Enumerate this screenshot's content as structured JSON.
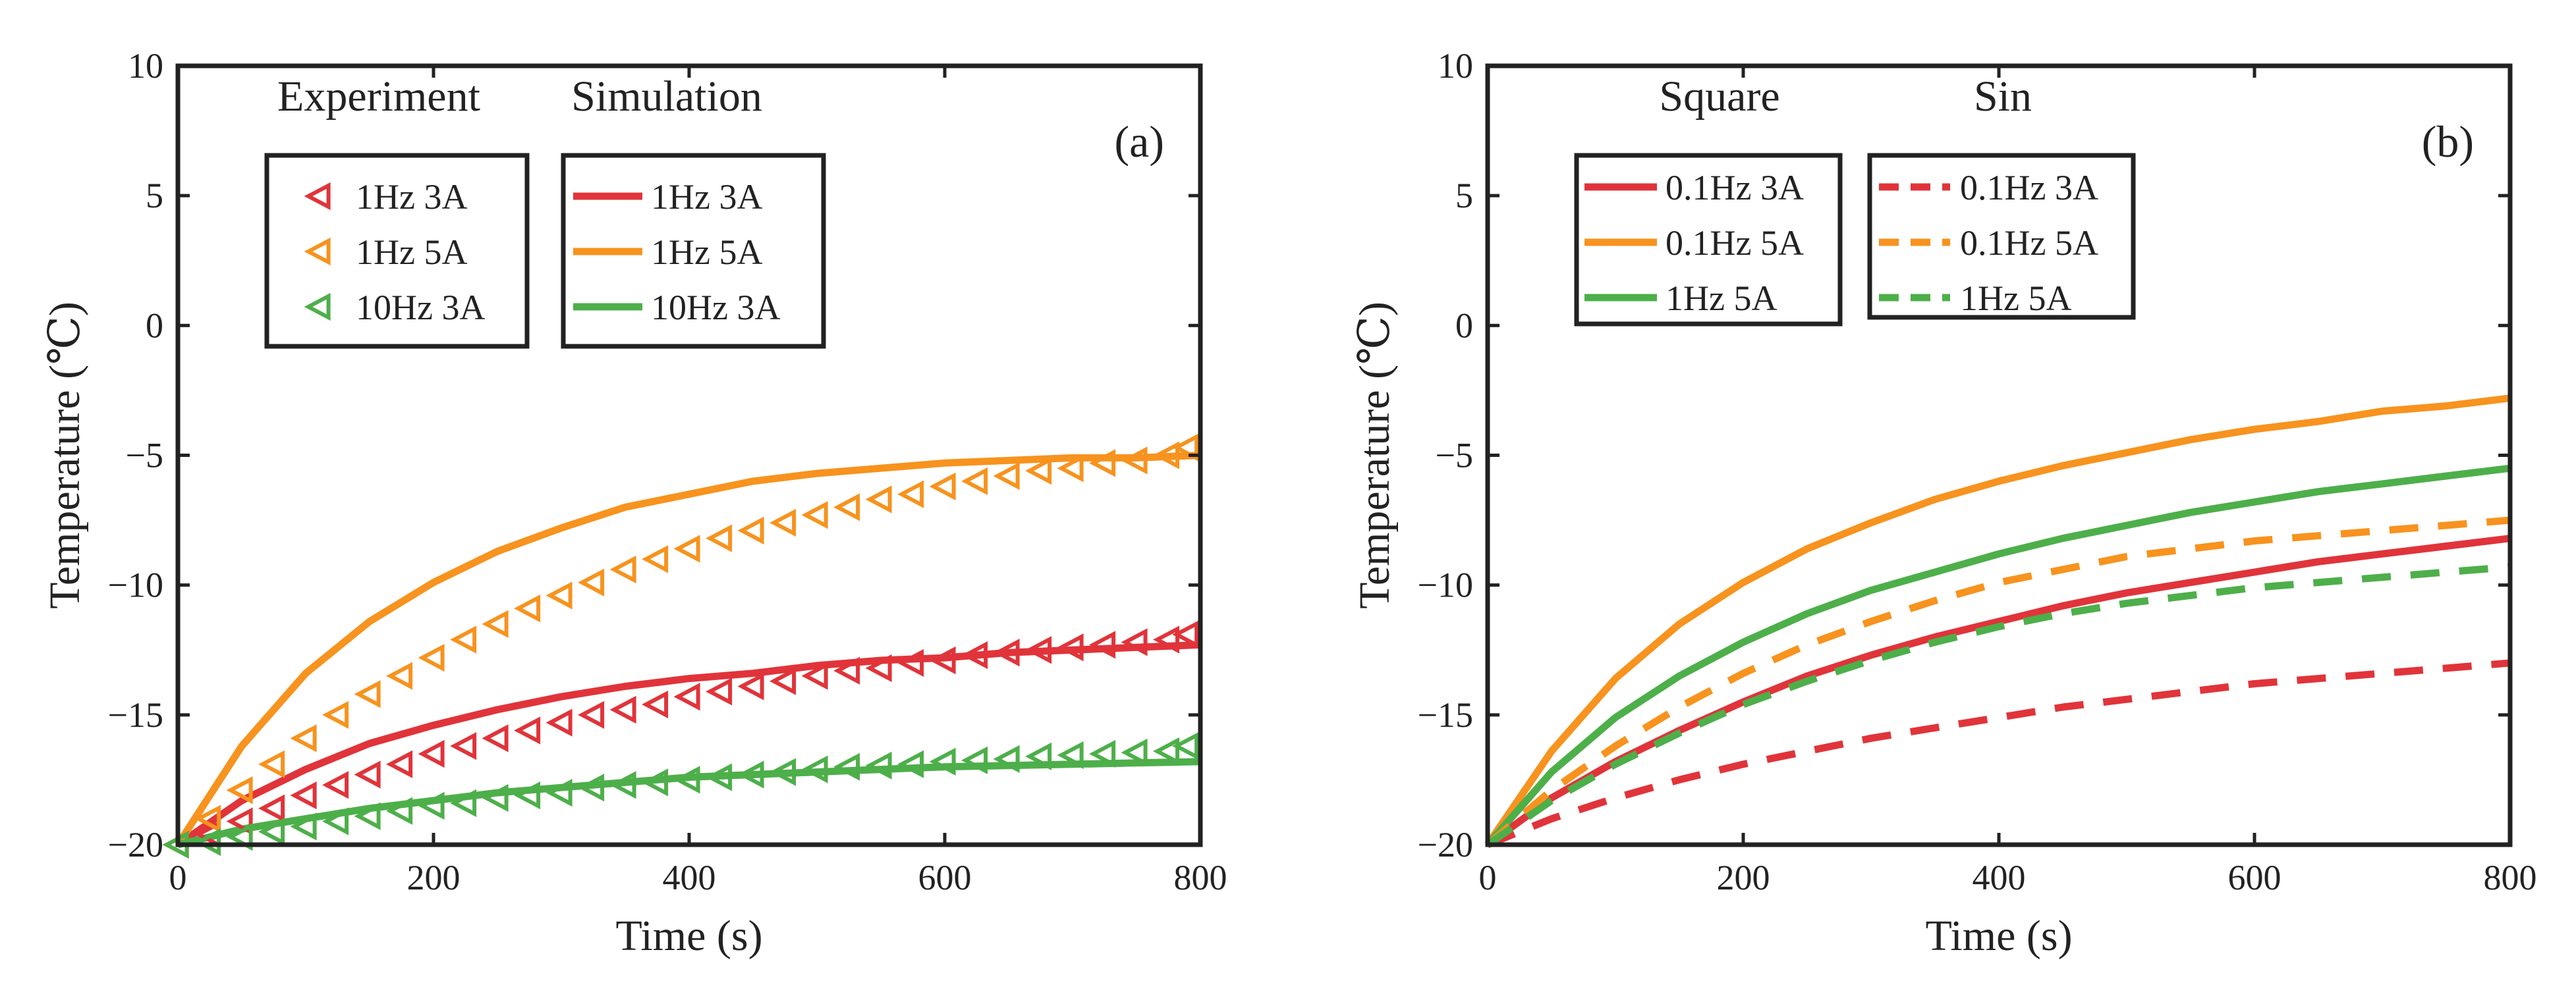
{
  "chart_data": [
    {
      "type": "line",
      "panel_label": "(a)",
      "xlabel": "Time (s)",
      "ylabel": "Temperature (℃)",
      "xlim": [
        0,
        800
      ],
      "ylim": [
        -20,
        10
      ],
      "xticks": [
        0,
        200,
        400,
        600,
        800
      ],
      "yticks": [
        -20,
        -15,
        -10,
        -5,
        0,
        5,
        10
      ],
      "legends": [
        {
          "title": "Experiment",
          "entries": [
            "1Hz 3A",
            "1Hz 5A",
            "10Hz 3A"
          ]
        },
        {
          "title": "Simulation",
          "entries": [
            "1Hz 3A",
            "1Hz 5A",
            "10Hz 3A"
          ]
        }
      ],
      "series": [
        {
          "name": "1Hz 3A",
          "kind": "simulation",
          "style": "solid",
          "color": "#e0343a",
          "x": [
            0,
            50,
            100,
            150,
            200,
            250,
            300,
            350,
            400,
            450,
            500,
            550,
            600,
            650,
            700,
            750,
            800
          ],
          "y": [
            -20,
            -18.3,
            -17.1,
            -16.1,
            -15.4,
            -14.8,
            -14.3,
            -13.9,
            -13.6,
            -13.4,
            -13.1,
            -12.9,
            -12.8,
            -12.6,
            -12.5,
            -12.4,
            -12.3
          ]
        },
        {
          "name": "1Hz 5A",
          "kind": "simulation",
          "style": "solid",
          "color": "#f7931e",
          "x": [
            0,
            50,
            100,
            150,
            200,
            250,
            300,
            350,
            400,
            450,
            500,
            550,
            600,
            650,
            700,
            750,
            800
          ],
          "y": [
            -20,
            -16.2,
            -13.4,
            -11.4,
            -9.9,
            -8.7,
            -7.8,
            -7.0,
            -6.5,
            -6.0,
            -5.7,
            -5.5,
            -5.3,
            -5.2,
            -5.1,
            -5.1,
            -5.0
          ]
        },
        {
          "name": "10Hz 3A",
          "kind": "simulation",
          "style": "solid",
          "color": "#4daf4a",
          "x": [
            0,
            50,
            100,
            150,
            200,
            250,
            300,
            350,
            400,
            450,
            500,
            550,
            600,
            650,
            700,
            750,
            800
          ],
          "y": [
            -20,
            -19.4,
            -19.0,
            -18.6,
            -18.3,
            -18.0,
            -17.8,
            -17.6,
            -17.4,
            -17.3,
            -17.2,
            -17.1,
            -17.0,
            -16.95,
            -16.9,
            -16.85,
            -16.8
          ]
        },
        {
          "name": "1Hz 3A",
          "kind": "experiment",
          "style": "marker",
          "color": "#e0343a",
          "x": [
            0,
            25,
            50,
            75,
            100,
            125,
            150,
            175,
            200,
            225,
            250,
            275,
            300,
            325,
            350,
            375,
            400,
            425,
            450,
            475,
            500,
            525,
            550,
            575,
            600,
            625,
            650,
            675,
            700,
            725,
            750,
            775,
            790
          ],
          "y": [
            -20,
            -19.6,
            -19.1,
            -18.6,
            -18.1,
            -17.7,
            -17.3,
            -16.9,
            -16.5,
            -16.2,
            -15.9,
            -15.6,
            -15.3,
            -15.0,
            -14.8,
            -14.6,
            -14.3,
            -14.1,
            -13.9,
            -13.7,
            -13.5,
            -13.3,
            -13.2,
            -13.0,
            -12.9,
            -12.7,
            -12.6,
            -12.5,
            -12.4,
            -12.3,
            -12.2,
            -12.1,
            -11.9
          ]
        },
        {
          "name": "1Hz 5A",
          "kind": "experiment",
          "style": "marker",
          "color": "#f7931e",
          "x": [
            0,
            25,
            50,
            75,
            100,
            125,
            150,
            175,
            200,
            225,
            250,
            275,
            300,
            325,
            350,
            375,
            400,
            425,
            450,
            475,
            500,
            525,
            550,
            575,
            600,
            625,
            650,
            675,
            700,
            725,
            750,
            775,
            790
          ],
          "y": [
            -20,
            -19.0,
            -17.9,
            -16.9,
            -15.9,
            -15.0,
            -14.2,
            -13.5,
            -12.8,
            -12.1,
            -11.5,
            -10.9,
            -10.4,
            -9.9,
            -9.4,
            -9.0,
            -8.6,
            -8.2,
            -7.9,
            -7.6,
            -7.3,
            -7.0,
            -6.7,
            -6.5,
            -6.2,
            -6.0,
            -5.8,
            -5.6,
            -5.5,
            -5.3,
            -5.2,
            -5.0,
            -4.7
          ]
        },
        {
          "name": "10Hz 3A",
          "kind": "experiment",
          "style": "marker",
          "color": "#4daf4a",
          "x": [
            0,
            25,
            50,
            75,
            100,
            125,
            150,
            175,
            200,
            225,
            250,
            275,
            300,
            325,
            350,
            375,
            400,
            425,
            450,
            475,
            500,
            525,
            550,
            575,
            600,
            625,
            650,
            675,
            700,
            725,
            750,
            775,
            790
          ],
          "y": [
            -20,
            -19.9,
            -19.7,
            -19.5,
            -19.3,
            -19.1,
            -18.9,
            -18.7,
            -18.5,
            -18.4,
            -18.2,
            -18.1,
            -18.0,
            -17.8,
            -17.7,
            -17.6,
            -17.5,
            -17.4,
            -17.3,
            -17.2,
            -17.1,
            -17.0,
            -16.95,
            -16.9,
            -16.8,
            -16.75,
            -16.7,
            -16.6,
            -16.55,
            -16.5,
            -16.45,
            -16.4,
            -16.2
          ]
        }
      ]
    },
    {
      "type": "line",
      "panel_label": "(b)",
      "xlabel": "Time (s)",
      "ylabel": "Temperature (℃)",
      "xlim": [
        0,
        800
      ],
      "ylim": [
        -20,
        10
      ],
      "xticks": [
        0,
        200,
        400,
        600,
        800
      ],
      "yticks": [
        -20,
        -15,
        -10,
        -5,
        0,
        5,
        10
      ],
      "legends": [
        {
          "title": "Square",
          "entries": [
            "0.1Hz 3A",
            "0.1Hz 5A",
            "1Hz 5A"
          ]
        },
        {
          "title": "Sin",
          "entries": [
            "0.1Hz 3A",
            "0.1Hz 5A",
            "1Hz 5A"
          ]
        }
      ],
      "series": [
        {
          "name": "0.1Hz 3A",
          "kind": "square",
          "style": "solid",
          "color": "#e0343a",
          "x": [
            0,
            50,
            100,
            150,
            200,
            250,
            300,
            350,
            400,
            450,
            500,
            550,
            600,
            650,
            700,
            750,
            800
          ],
          "y": [
            -20,
            -18.2,
            -16.8,
            -15.6,
            -14.5,
            -13.5,
            -12.7,
            -12.0,
            -11.4,
            -10.8,
            -10.3,
            -9.9,
            -9.5,
            -9.1,
            -8.8,
            -8.5,
            -8.2
          ]
        },
        {
          "name": "0.1Hz 5A",
          "kind": "square",
          "style": "solid",
          "color": "#f7931e",
          "x": [
            0,
            50,
            100,
            150,
            200,
            250,
            300,
            350,
            400,
            450,
            500,
            550,
            600,
            650,
            700,
            750,
            800
          ],
          "y": [
            -20,
            -16.4,
            -13.6,
            -11.5,
            -9.9,
            -8.6,
            -7.6,
            -6.7,
            -6.0,
            -5.4,
            -4.9,
            -4.4,
            -4.0,
            -3.7,
            -3.3,
            -3.1,
            -2.8
          ]
        },
        {
          "name": "1Hz 5A",
          "kind": "square",
          "style": "solid",
          "color": "#4daf4a",
          "x": [
            0,
            50,
            100,
            150,
            200,
            250,
            300,
            350,
            400,
            450,
            500,
            550,
            600,
            650,
            700,
            750,
            800
          ],
          "y": [
            -20,
            -17.2,
            -15.1,
            -13.5,
            -12.2,
            -11.1,
            -10.2,
            -9.5,
            -8.8,
            -8.2,
            -7.7,
            -7.2,
            -6.8,
            -6.4,
            -6.1,
            -5.8,
            -5.5
          ]
        },
        {
          "name": "0.1Hz 3A",
          "kind": "sin",
          "style": "dashed",
          "color": "#e0343a",
          "x": [
            0,
            50,
            100,
            150,
            200,
            250,
            300,
            350,
            400,
            450,
            500,
            550,
            600,
            650,
            700,
            750,
            800
          ],
          "y": [
            -20,
            -19.0,
            -18.2,
            -17.5,
            -16.9,
            -16.4,
            -15.9,
            -15.5,
            -15.1,
            -14.7,
            -14.4,
            -14.1,
            -13.8,
            -13.6,
            -13.4,
            -13.2,
            -13.0
          ]
        },
        {
          "name": "0.1Hz 5A",
          "kind": "sin",
          "style": "dashed",
          "color": "#f7931e",
          "x": [
            0,
            50,
            100,
            150,
            200,
            250,
            300,
            350,
            400,
            450,
            500,
            550,
            600,
            650,
            700,
            750,
            800
          ],
          "y": [
            -20,
            -17.9,
            -16.2,
            -14.7,
            -13.4,
            -12.3,
            -11.4,
            -10.6,
            -9.9,
            -9.4,
            -8.9,
            -8.6,
            -8.3,
            -8.1,
            -7.9,
            -7.7,
            -7.5
          ]
        },
        {
          "name": "1Hz 5A",
          "kind": "sin",
          "style": "dashed",
          "color": "#4daf4a",
          "x": [
            0,
            50,
            100,
            150,
            200,
            250,
            300,
            350,
            400,
            450,
            500,
            550,
            600,
            650,
            700,
            750,
            800
          ],
          "y": [
            -20,
            -18.3,
            -16.9,
            -15.7,
            -14.6,
            -13.7,
            -12.9,
            -12.2,
            -11.6,
            -11.1,
            -10.7,
            -10.4,
            -10.1,
            -9.9,
            -9.7,
            -9.5,
            -9.3
          ]
        }
      ]
    }
  ]
}
